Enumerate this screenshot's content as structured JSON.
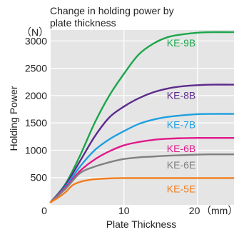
{
  "chart_data": {
    "type": "line",
    "title_lines": [
      "Change in holding power by",
      "plate thickness"
    ],
    "xlabel": "Plate Thickness",
    "ylabel": "Holding Power",
    "y_unit": "（N）",
    "x_unit": "（mm）",
    "xlim": [
      0,
      25
    ],
    "ylim": [
      0,
      3200
    ],
    "x_ticks": [
      {
        "value": 0,
        "label": "0"
      },
      {
        "value": 10,
        "label": "10"
      },
      {
        "value": 20,
        "label": "20"
      }
    ],
    "y_ticks": [
      {
        "value": 500,
        "label": "500"
      },
      {
        "value": 1000,
        "label": "1000"
      },
      {
        "value": 1500,
        "label": "1500"
      },
      {
        "value": 2000,
        "label": "2000"
      },
      {
        "value": 2500,
        "label": "2500"
      },
      {
        "value": 3000,
        "label": "3000"
      }
    ],
    "grid": true,
    "background_color": "#e5e5e5",
    "grid_color": "#ffffff",
    "series": [
      {
        "name": "KE-9B",
        "color": "#1aa64a",
        "x": [
          0,
          2,
          4,
          6,
          8,
          10,
          12,
          14,
          16,
          18,
          20,
          22,
          25
        ],
        "y": [
          50,
          380,
          900,
          1500,
          2000,
          2400,
          2750,
          2950,
          3070,
          3120,
          3150,
          3160,
          3160
        ]
      },
      {
        "name": "KE-8B",
        "color": "#5c2a8c",
        "x": [
          0,
          2,
          4,
          6,
          8,
          10,
          12,
          14,
          16,
          18,
          20,
          22,
          25
        ],
        "y": [
          50,
          360,
          800,
          1250,
          1600,
          1800,
          1950,
          2060,
          2130,
          2170,
          2190,
          2200,
          2200
        ]
      },
      {
        "name": "KE-7B",
        "color": "#1e9fe0",
        "x": [
          0,
          2,
          4,
          6,
          8,
          10,
          12,
          14,
          16,
          18,
          20,
          22,
          25
        ],
        "y": [
          50,
          330,
          700,
          1000,
          1200,
          1350,
          1480,
          1560,
          1610,
          1640,
          1660,
          1665,
          1665
        ]
      },
      {
        "name": "KE-6B",
        "color": "#e0198a",
        "x": [
          0,
          2,
          4,
          6,
          8,
          10,
          12,
          14,
          16,
          18,
          20,
          22,
          25
        ],
        "y": [
          50,
          310,
          620,
          830,
          980,
          1090,
          1150,
          1190,
          1210,
          1220,
          1225,
          1225,
          1225
        ]
      },
      {
        "name": "KE-6E",
        "color": "#808080",
        "x": [
          0,
          2,
          4,
          6,
          8,
          10,
          12,
          14,
          16,
          18,
          20,
          22,
          25
        ],
        "y": [
          50,
          290,
          580,
          700,
          780,
          840,
          870,
          885,
          900,
          910,
          920,
          925,
          925
        ]
      },
      {
        "name": "KE-5E",
        "color": "#f07c1c",
        "x": [
          0,
          1,
          2,
          3,
          4,
          5,
          6,
          8,
          10,
          15,
          20,
          25
        ],
        "y": [
          50,
          130,
          230,
          360,
          420,
          450,
          470,
          485,
          490,
          490,
          490,
          490
        ]
      }
    ]
  }
}
